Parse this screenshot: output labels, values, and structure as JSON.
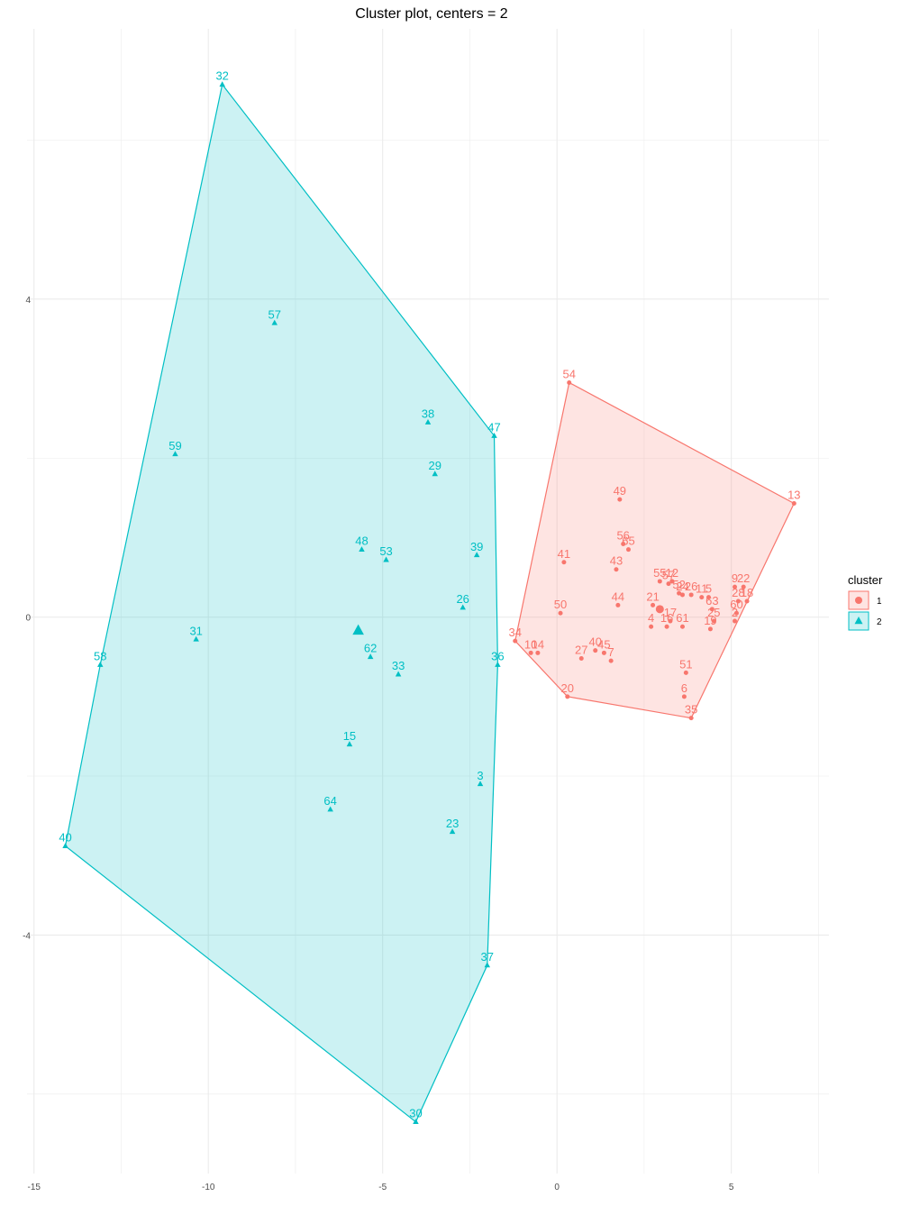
{
  "chart_data": {
    "type": "scatter",
    "title": "Cluster plot, centers = 2",
    "xlabel": "",
    "ylabel": "",
    "xlim": [
      -15.2,
      7.8
    ],
    "ylim": [
      -7.0,
      7.4
    ],
    "x_ticks": [
      -15,
      -10,
      -5,
      0,
      5
    ],
    "y_ticks": [
      -4,
      0,
      4
    ],
    "grid": true,
    "legend": {
      "title": "cluster",
      "position": "right"
    },
    "series": [
      {
        "name": "1",
        "color": "#F8766D",
        "marker": "circle",
        "center": {
          "x": 2.95,
          "y": 0.1
        },
        "hull": [
          54,
          13,
          35,
          20,
          34
        ],
        "points": [
          {
            "id": "54",
            "x": 0.35,
            "y": 2.95
          },
          {
            "id": "49",
            "x": 1.8,
            "y": 1.48
          },
          {
            "id": "13",
            "x": 6.8,
            "y": 1.43
          },
          {
            "id": "56",
            "x": 1.9,
            "y": 0.92
          },
          {
            "id": "65",
            "x": 2.05,
            "y": 0.85
          },
          {
            "id": "41",
            "x": 0.2,
            "y": 0.69
          },
          {
            "id": "43",
            "x": 1.7,
            "y": 0.6
          },
          {
            "id": "55",
            "x": 2.95,
            "y": 0.45
          },
          {
            "id": "57",
            "x": 3.2,
            "y": 0.42
          },
          {
            "id": "12",
            "x": 3.3,
            "y": 0.45
          },
          {
            "id": "52",
            "x": 3.5,
            "y": 0.3
          },
          {
            "id": "24",
            "x": 3.6,
            "y": 0.28
          },
          {
            "id": "26",
            "x": 3.85,
            "y": 0.28
          },
          {
            "id": "11",
            "x": 4.15,
            "y": 0.25
          },
          {
            "id": "5",
            "x": 4.35,
            "y": 0.25
          },
          {
            "id": "9",
            "x": 5.1,
            "y": 0.38
          },
          {
            "id": "22",
            "x": 5.35,
            "y": 0.38
          },
          {
            "id": "63",
            "x": 4.45,
            "y": 0.1
          },
          {
            "id": "28",
            "x": 5.2,
            "y": 0.2
          },
          {
            "id": "18",
            "x": 5.45,
            "y": 0.2
          },
          {
            "id": "60",
            "x": 5.15,
            "y": 0.05
          },
          {
            "id": "44",
            "x": 1.75,
            "y": 0.15
          },
          {
            "id": "21",
            "x": 2.75,
            "y": 0.15
          },
          {
            "id": "17",
            "x": 3.25,
            "y": -0.05
          },
          {
            "id": "50",
            "x": 0.1,
            "y": 0.05
          },
          {
            "id": "25",
            "x": 4.5,
            "y": -0.05
          },
          {
            "id": "19",
            "x": 4.4,
            "y": -0.15
          },
          {
            "id": "4",
            "x": 2.7,
            "y": -0.12
          },
          {
            "id": "16",
            "x": 3.15,
            "y": -0.12
          },
          {
            "id": "61",
            "x": 3.6,
            "y": -0.12
          },
          {
            "id": "2",
            "x": 5.1,
            "y": -0.05
          },
          {
            "id": "34",
            "x": -1.2,
            "y": -0.3
          },
          {
            "id": "10",
            "x": -0.75,
            "y": -0.45
          },
          {
            "id": "14",
            "x": -0.55,
            "y": -0.45
          },
          {
            "id": "40",
            "x": 1.1,
            "y": -0.42
          },
          {
            "id": "45",
            "x": 1.35,
            "y": -0.45
          },
          {
            "id": "27",
            "x": 0.7,
            "y": -0.52
          },
          {
            "id": "7",
            "x": 1.55,
            "y": -0.55
          },
          {
            "id": "51",
            "x": 3.7,
            "y": -0.7
          },
          {
            "id": "6",
            "x": 3.65,
            "y": -1.0
          },
          {
            "id": "20",
            "x": 0.3,
            "y": -1.0
          },
          {
            "id": "35",
            "x": 3.85,
            "y": -1.27
          }
        ]
      },
      {
        "name": "2",
        "color": "#00BFC4",
        "marker": "triangle",
        "center": {
          "x": -5.7,
          "y": -0.17
        },
        "hull": [
          32,
          47,
          36,
          37,
          30,
          40,
          58
        ],
        "points": [
          {
            "id": "32",
            "x": -9.6,
            "y": 6.7
          },
          {
            "id": "57",
            "x": -8.1,
            "y": 3.7
          },
          {
            "id": "38",
            "x": -3.7,
            "y": 2.45
          },
          {
            "id": "47",
            "x": -1.8,
            "y": 2.28
          },
          {
            "id": "59",
            "x": -10.95,
            "y": 2.05
          },
          {
            "id": "29",
            "x": -3.5,
            "y": 1.8
          },
          {
            "id": "48",
            "x": -5.6,
            "y": 0.85
          },
          {
            "id": "53",
            "x": -4.9,
            "y": 0.72
          },
          {
            "id": "39",
            "x": -2.3,
            "y": 0.78
          },
          {
            "id": "26",
            "x": -2.7,
            "y": 0.12
          },
          {
            "id": "31",
            "x": -10.35,
            "y": -0.28
          },
          {
            "id": "62",
            "x": -5.35,
            "y": -0.5
          },
          {
            "id": "58",
            "x": -13.1,
            "y": -0.6
          },
          {
            "id": "36",
            "x": -1.7,
            "y": -0.6
          },
          {
            "id": "33",
            "x": -4.55,
            "y": -0.72
          },
          {
            "id": "15",
            "x": -5.95,
            "y": -1.6
          },
          {
            "id": "3",
            "x": -2.2,
            "y": -2.1
          },
          {
            "id": "64",
            "x": -6.5,
            "y": -2.42
          },
          {
            "id": "23",
            "x": -3.0,
            "y": -2.7
          },
          {
            "id": "40",
            "x": -14.1,
            "y": -2.88
          },
          {
            "id": "37",
            "x": -2.0,
            "y": -4.38
          },
          {
            "id": "30",
            "x": -4.05,
            "y": -6.35
          }
        ]
      }
    ]
  }
}
